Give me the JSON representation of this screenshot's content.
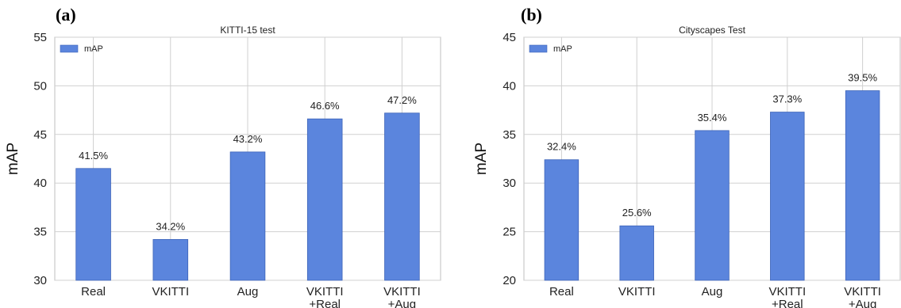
{
  "chart_data": [
    {
      "panel_label": "(a)",
      "type": "bar",
      "title": "KITTI-15 test",
      "xlabel": "",
      "ylabel": "mAP",
      "categories": [
        "Real",
        "VKITTI",
        "Aug",
        "VKITTI\n+Real",
        "VKITTI\n+Aug"
      ],
      "series": [
        {
          "name": "mAP",
          "values": [
            41.5,
            34.2,
            43.2,
            46.6,
            47.2
          ],
          "labels": [
            "41.5%",
            "34.2%",
            "43.2%",
            "46.6%",
            "47.2%"
          ],
          "color": "#5b85dd"
        }
      ],
      "ylim": [
        30,
        55
      ],
      "yticks": [
        30,
        35,
        40,
        45,
        50,
        55
      ],
      "grid": true,
      "legend_position": "top-left"
    },
    {
      "panel_label": "(b)",
      "type": "bar",
      "title": "Cityscapes Test",
      "xlabel": "",
      "ylabel": "mAP",
      "categories": [
        "Real",
        "VKITTI",
        "Aug",
        "VKITTI\n+Real",
        "VKITTI\n+Aug"
      ],
      "series": [
        {
          "name": "mAP",
          "values": [
            32.4,
            25.6,
            35.4,
            37.3,
            39.5
          ],
          "labels": [
            "32.4%",
            "25.6%",
            "35.4%",
            "37.3%",
            "39.5%"
          ],
          "color": "#5b85dd"
        }
      ],
      "ylim": [
        20,
        45
      ],
      "yticks": [
        20,
        25,
        30,
        35,
        40,
        45
      ],
      "grid": true,
      "legend_position": "top-left"
    }
  ]
}
